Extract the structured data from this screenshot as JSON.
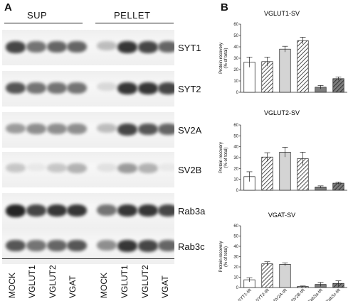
{
  "panel_a": {
    "letter": "A",
    "groups": [
      "SUP",
      "PELLET"
    ],
    "proteins": [
      "SYT1",
      "SYT2",
      "SV2A",
      "SV2B",
      "Rab3a",
      "Rab3c"
    ],
    "lanes": [
      "MOCK",
      "VGLUT1",
      "VGLUT2",
      "VGAT",
      "MOCK",
      "VGLUT1",
      "VGLUT2",
      "VGAT"
    ],
    "band_intensity": [
      [
        0.85,
        0.7,
        0.75,
        0.75,
        0.4,
        0.9,
        0.85,
        0.75
      ],
      [
        0.8,
        0.7,
        0.7,
        0.7,
        0.25,
        0.9,
        0.9,
        0.85
      ],
      [
        0.55,
        0.6,
        0.6,
        0.6,
        0.4,
        0.85,
        0.8,
        0.75
      ],
      [
        0.35,
        0.15,
        0.35,
        0.45,
        0.2,
        0.55,
        0.45,
        0.15
      ],
      [
        0.95,
        0.85,
        0.9,
        0.9,
        0.7,
        0.9,
        0.9,
        0.85
      ],
      [
        0.8,
        0.7,
        0.75,
        0.8,
        0.6,
        0.9,
        0.85,
        0.75
      ]
    ]
  },
  "panel_b": {
    "letter": "B"
  },
  "chart_data": [
    {
      "type": "bar",
      "title": "VGLUT1-SV",
      "ylabel": "Protein recovery\n(% of total)",
      "ylim": [
        0,
        60
      ],
      "yticks": [
        0,
        10,
        20,
        30,
        40,
        50,
        60
      ],
      "categories": [
        "SYT1-IR",
        "SYT2-IR",
        "SV2A-IR",
        "SV2B-IR",
        "Rab3a-IR",
        "Rab3c-IR"
      ],
      "values": [
        26.5,
        27,
        38,
        45.5,
        4.5,
        12
      ],
      "errors": [
        4.5,
        4,
        2.5,
        3,
        1.5,
        1.5
      ]
    },
    {
      "type": "bar",
      "title": "VGLUT2-SV",
      "ylabel": "Protein recovery\n(% of total)",
      "ylim": [
        0,
        60
      ],
      "yticks": [
        0,
        10,
        20,
        30,
        40,
        50,
        60
      ],
      "categories": [
        "SYT1-IR",
        "SYT2-IR",
        "SV2A-IR",
        "SV2B-IR",
        "Rab3a-IR",
        "Rab3c-IR"
      ],
      "values": [
        12.5,
        30.5,
        35,
        29,
        3,
        6.5
      ],
      "errors": [
        4.5,
        4,
        4.5,
        6,
        1,
        1
      ]
    },
    {
      "type": "bar",
      "title": "VGAT-SV",
      "ylabel": "Protein recovery\n(% of total)",
      "ylim": [
        0,
        60
      ],
      "yticks": [
        0,
        10,
        20,
        30,
        40,
        50,
        60
      ],
      "categories": [
        "SYT1-IR",
        "SYT2-IR",
        "SV2A-IR",
        "SV2B-IR",
        "Rab3a-IR",
        "Rab3c-IR"
      ],
      "values": [
        7.5,
        23,
        22.5,
        1,
        3,
        4
      ],
      "errors": [
        2,
        2,
        1.5,
        0.5,
        2,
        2.5
      ]
    }
  ],
  "bar_styles": [
    {
      "fill": "#ffffff",
      "pattern": "none"
    },
    {
      "fill": "#ffffff",
      "pattern": "hatch"
    },
    {
      "fill": "#d4d4d4",
      "pattern": "none"
    },
    {
      "fill": "#ffffff",
      "pattern": "hatch"
    },
    {
      "fill": "#7d7d7d",
      "pattern": "none"
    },
    {
      "fill": "#7d7d7d",
      "pattern": "hatch"
    }
  ]
}
